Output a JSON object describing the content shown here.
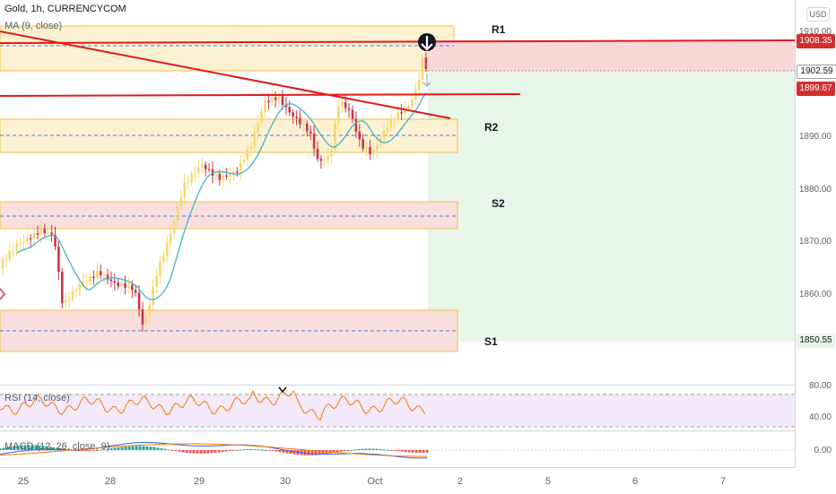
{
  "header": {
    "symbol": "Gold, 1h, CURRENCYCOM",
    "ma_legend": "MA (9, close)",
    "currency": "USD"
  },
  "zones": {
    "r1": "R1",
    "r2": "R2",
    "s2": "S2",
    "s1": "S1"
  },
  "price_axis": {
    "ticks": [
      "1910.00",
      "1890.00",
      "1880.00",
      "1870.00",
      "1860.00"
    ],
    "labels": {
      "resistance": "1908.35",
      "current": "1902.59",
      "trend": "1899.67",
      "support": "1850.55"
    },
    "colors": {
      "resistance": "#d32f2f",
      "current": "#9e9e9e",
      "trend": "#d32f2f",
      "support": "#e8f5e9"
    }
  },
  "rsi": {
    "legend": "RSI (14, close)",
    "ticks": [
      "80.00",
      "40.00"
    ]
  },
  "macd": {
    "legend": "MACD (12, 26, close, 9)",
    "ticks": [
      "0.00"
    ]
  },
  "time_axis": [
    "25",
    "28",
    "29",
    "30",
    "Oct",
    "2",
    "5",
    "6",
    "7"
  ],
  "colors": {
    "up": "#f5d76e",
    "down": "#c8354a",
    "ma": "#3fb6c9",
    "red_line": "#e01919",
    "rsi": "#f57c00"
  }
}
